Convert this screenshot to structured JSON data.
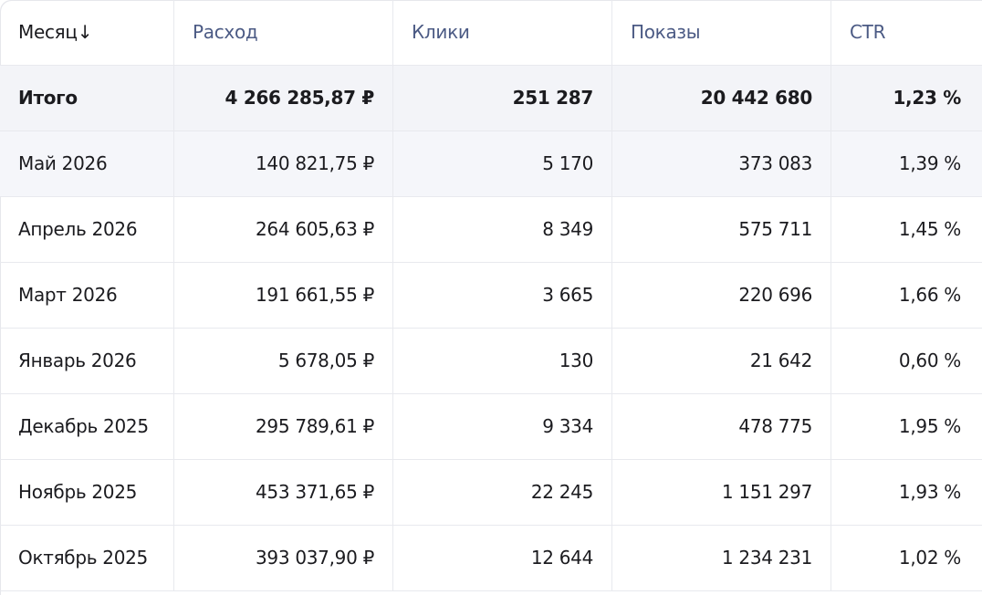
{
  "table": {
    "headers": [
      "Месяц↓",
      "Расход",
      "Клики",
      "Показы",
      "CTR"
    ],
    "rows": [
      [
        "Итого",
        "4 266 285,87 ₽",
        "251 287",
        "20 442 680",
        "1,23 %"
      ],
      [
        "Май 2026",
        "140 821,75 ₽",
        "5 170",
        "373 083",
        "1,39 %"
      ],
      [
        "Апрель 2026",
        "264 605,63 ₽",
        "8 349",
        "575 711",
        "1,45 %"
      ],
      [
        "Март 2026",
        "191 661,55 ₽",
        "3 665",
        "220 696",
        "1,66 %"
      ],
      [
        "Январь 2026",
        "5 678,05 ₽",
        "130",
        "21 642",
        "0,60 %"
      ],
      [
        "Декабрь 2025",
        "295 789,61 ₽",
        "9 334",
        "478 775",
        "1,95 %"
      ],
      [
        "Ноябрь 2025",
        "453 371,65 ₽",
        "22 245",
        "1 151 297",
        "1,93 %"
      ],
      [
        "Октябрь 2025",
        "393 037,90 ₽",
        "12 644",
        "1 234 231",
        "1,02 %"
      ]
    ]
  }
}
